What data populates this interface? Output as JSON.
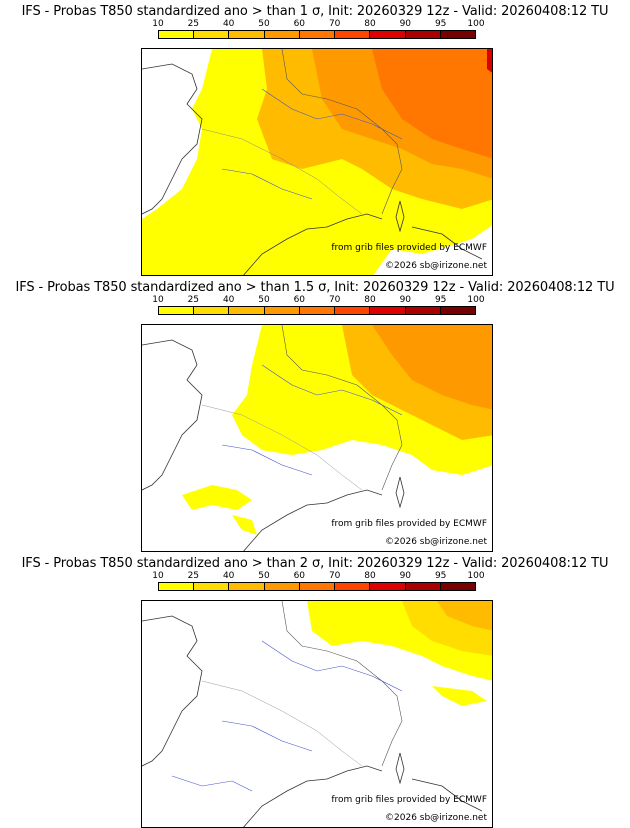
{
  "colorbar": {
    "ticks": [
      "10",
      "25",
      "40",
      "50",
      "60",
      "70",
      "80",
      "90",
      "95",
      "100"
    ],
    "colors": [
      "#ffff00",
      "#ffdd00",
      "#ffbb00",
      "#ff9900",
      "#ff7700",
      "#ff4400",
      "#dd0000",
      "#aa0000",
      "#770000"
    ]
  },
  "panels": [
    {
      "title": "IFS - Probas T850  standardized ano > than 1 σ, Init: 20260329 12z - Valid: 20260408:12 TU",
      "credit_source": "from grib files provided by ECMWF",
      "credit_copyright": "©2026 sb@irizone.net"
    },
    {
      "title": "IFS - Probas T850  standardized ano > than 1.5 σ, Init: 20260329 12z - Valid: 20260408:12 TU",
      "credit_source": "from grib files provided by ECMWF",
      "credit_copyright": "©2026 sb@irizone.net"
    },
    {
      "title": "IFS - Probas T850  standardized ano > than 2 σ, Init: 20260329 12z - Valid: 20260408:12 TU",
      "credit_source": "from grib files provided by ECMWF",
      "credit_copyright": "©2026 sb@irizone.net"
    }
  ]
}
